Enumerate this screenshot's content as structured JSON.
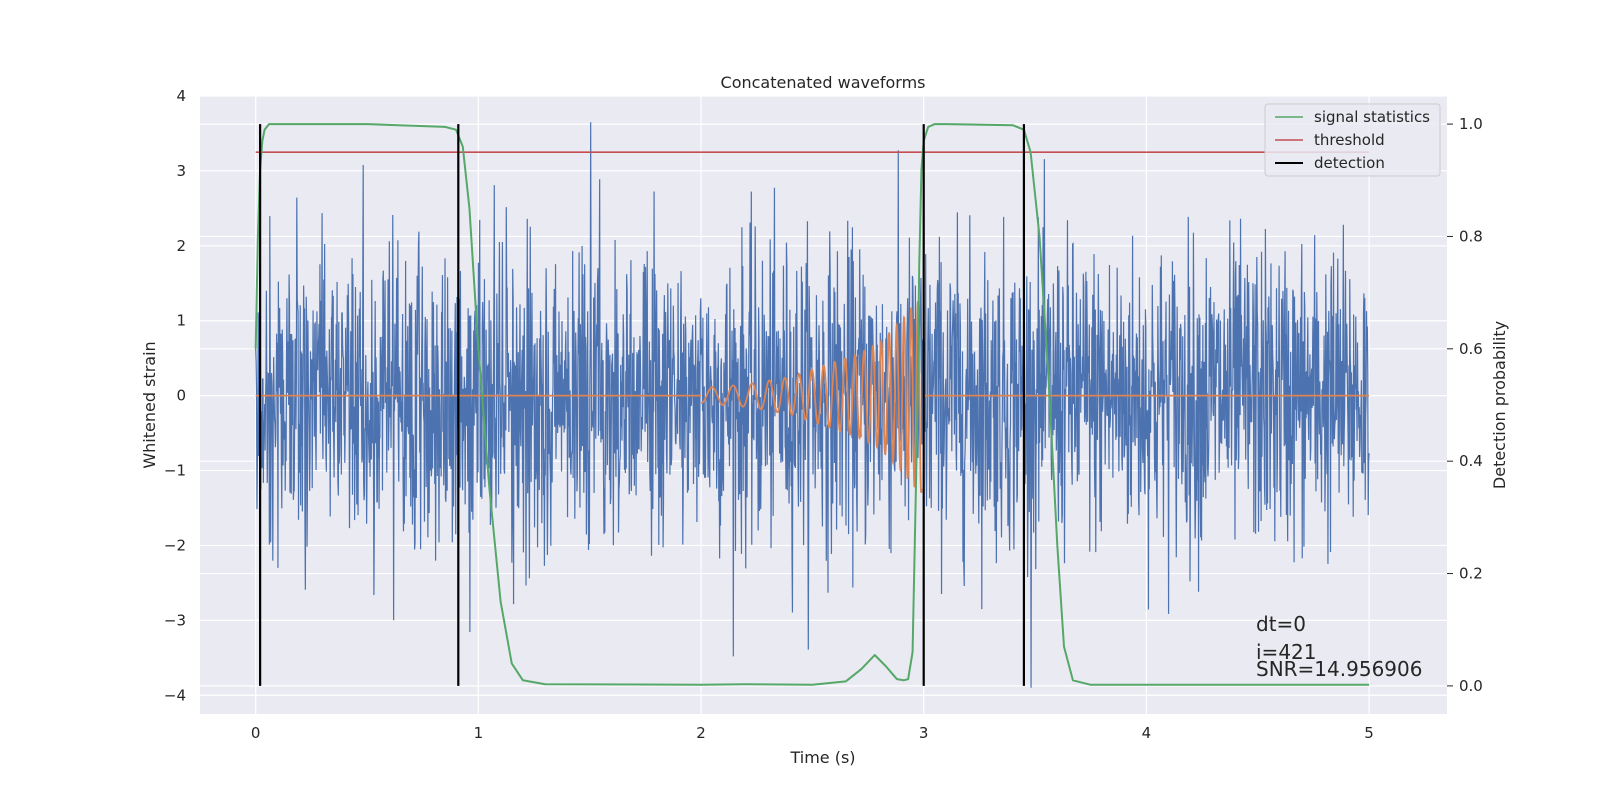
{
  "chart_data": {
    "type": "line",
    "title": "Concatenated waveforms",
    "xlabel": "Time (s)",
    "ylabel_left": "Whitened strain",
    "ylabel_right": "Detection probability",
    "xlim": [
      -0.25,
      5.35
    ],
    "ylim_left": [
      -4.25,
      4.0
    ],
    "ylim_right": [
      -0.05,
      1.05
    ],
    "xticks": [
      "0",
      "1",
      "2",
      "3",
      "4",
      "5"
    ],
    "yticks_left": [
      "4",
      "3",
      "2",
      "1",
      "0",
      "−1",
      "−2",
      "−3",
      "−4"
    ],
    "yticks_right": [
      "1.0",
      "0.8",
      "0.6",
      "0.4",
      "0.2",
      "0.0"
    ],
    "grid": true,
    "legend_position": "top-right",
    "legend": [
      "signal statistics",
      "threshold",
      "detection"
    ],
    "colors": {
      "noise": "#4c72b0",
      "waveform": "#dd8452",
      "signal_statistics": "#55a868",
      "threshold": "#c44e52",
      "detection": "#000000",
      "background": "#eaeaf2",
      "grid": "#ffffff"
    },
    "noise": {
      "axis": "left",
      "x_range": [
        0,
        5
      ],
      "amplitude_typical": 1.0,
      "min": -3.9,
      "max": 3.65
    },
    "waveform": {
      "axis": "left",
      "flat_ranges": [
        [
          0,
          2.0
        ],
        [
          3.0,
          5.0
        ]
      ],
      "chirp": {
        "x": [
          2.0,
          2.2,
          2.4,
          2.5,
          2.6,
          2.7,
          2.8,
          2.85,
          2.9,
          2.95,
          2.99
        ],
        "envelope": [
          0.1,
          0.15,
          0.25,
          0.35,
          0.45,
          0.55,
          0.7,
          0.85,
          1.0,
          1.2,
          1.3
        ]
      }
    },
    "signal_statistics": {
      "axis": "right",
      "x": [
        0,
        0.01,
        0.02,
        0.03,
        0.04,
        0.06,
        0.1,
        0.5,
        0.85,
        0.9,
        0.93,
        0.96,
        1.0,
        1.05,
        1.1,
        1.15,
        1.2,
        1.3,
        2.0,
        2.2,
        2.5,
        2.65,
        2.72,
        2.78,
        2.83,
        2.88,
        2.91,
        2.93,
        2.95,
        2.97,
        2.98,
        2.99,
        3.0,
        3.02,
        3.05,
        3.1,
        3.4,
        3.45,
        3.48,
        3.52,
        3.56,
        3.6,
        3.63,
        3.67,
        3.75,
        4.5,
        5.0
      ],
      "y": [
        0.6,
        0.8,
        0.92,
        0.97,
        0.99,
        1.0,
        1.0,
        1.0,
        0.995,
        0.99,
        0.96,
        0.85,
        0.6,
        0.35,
        0.15,
        0.04,
        0.01,
        0.003,
        0.002,
        0.003,
        0.002,
        0.008,
        0.03,
        0.055,
        0.035,
        0.012,
        0.01,
        0.012,
        0.06,
        0.45,
        0.75,
        0.92,
        0.97,
        0.995,
        1.0,
        1.0,
        0.998,
        0.99,
        0.95,
        0.8,
        0.55,
        0.25,
        0.07,
        0.01,
        0.002,
        0.002,
        0.002
      ]
    },
    "threshold": {
      "axis": "right",
      "value": 0.95,
      "x_range": [
        0,
        5
      ]
    },
    "detections": {
      "axis": "right",
      "x": [
        0.02,
        0.91,
        3.0,
        3.45
      ],
      "y_range": [
        0.0,
        1.0
      ]
    },
    "annotations": [
      "dt=0",
      "i=421",
      "SNR=14.956906"
    ]
  }
}
